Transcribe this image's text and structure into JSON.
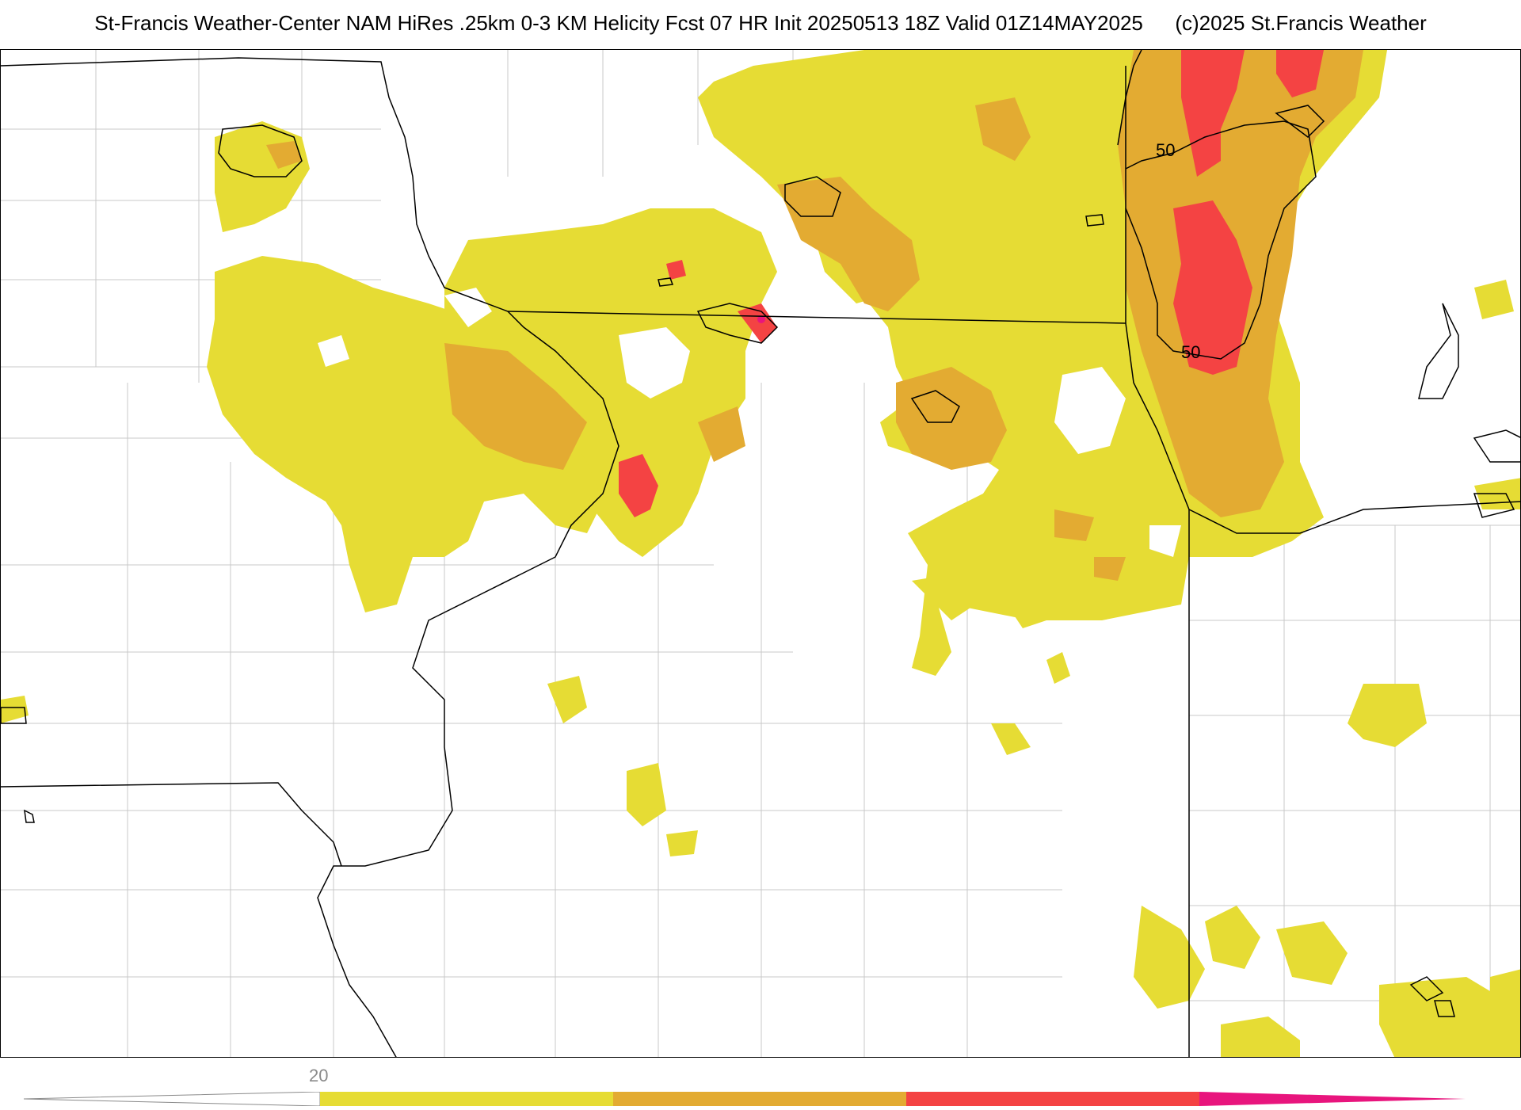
{
  "header": {
    "title": "St-Francis Weather-Center NAM HiRes .25km 0-3 KM Helicity Fcst 07 HR Init 20250513 18Z  Valid 01Z14MAY2025",
    "copyright": "(c)2025 St.Francis Weather"
  },
  "map": {
    "contour_labels": [
      "50",
      "50"
    ],
    "colors": {
      "level1": "#e6dc34",
      "level2": "#e3ab32",
      "level3": "#f44343",
      "level4": "#e8157d",
      "boundary": "#000000",
      "county": "#c8c8c8"
    }
  },
  "colorbar": {
    "tick_labels": [
      "20"
    ],
    "segments": [
      "#e6dc34",
      "#e3ab32",
      "#f44343",
      "#e8157d"
    ]
  }
}
